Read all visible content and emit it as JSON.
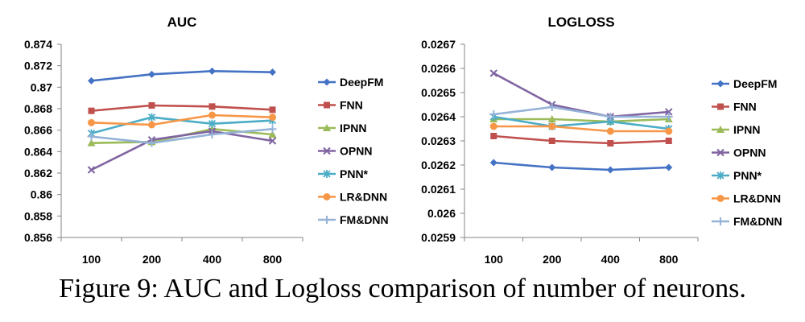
{
  "caption": "Figure 9:  AUC and Logloss comparison of number of neurons.",
  "colors": {
    "DeepFM": "#4472c4",
    "FNN": "#c0504d",
    "IPNN": "#9bbb59",
    "OPNN": "#8064a2",
    "PNN*": "#4bacc6",
    "LR&DNN": "#f79646",
    "FM&DNN": "#95b3d7"
  },
  "markers": {
    "DeepFM": "diamond",
    "FNN": "square",
    "IPNN": "triangle",
    "OPNN": "x",
    "PNN*": "star",
    "LR&DNN": "circle",
    "FM&DNN": "plus"
  },
  "chart_data": [
    {
      "type": "line",
      "title": "AUC",
      "categories": [
        "100",
        "200",
        "400",
        "800"
      ],
      "yticks": [
        "0.874",
        "0.872",
        "0.87",
        "0.868",
        "0.866",
        "0.864",
        "0.862",
        "0.86",
        "0.858",
        "0.856"
      ],
      "ylim": [
        0.856,
        0.874
      ],
      "series": [
        {
          "name": "DeepFM",
          "values": [
            0.8706,
            0.8712,
            0.8715,
            0.8714
          ]
        },
        {
          "name": "FNN",
          "values": [
            0.8678,
            0.8683,
            0.8682,
            0.8679
          ]
        },
        {
          "name": "IPNN",
          "values": [
            0.8648,
            0.8649,
            0.8661,
            0.8656
          ]
        },
        {
          "name": "OPNN",
          "values": [
            0.8623,
            0.8651,
            0.8659,
            0.865
          ]
        },
        {
          "name": "PNN*",
          "values": [
            0.8657,
            0.8672,
            0.8666,
            0.8669
          ]
        },
        {
          "name": "LR&DNN",
          "values": [
            0.8667,
            0.8665,
            0.8674,
            0.8672
          ]
        },
        {
          "name": "FM&DNN",
          "values": [
            0.8654,
            0.8648,
            0.8656,
            0.8661
          ]
        }
      ]
    },
    {
      "type": "line",
      "title": "LOGLOSS",
      "categories": [
        "100",
        "200",
        "400",
        "800"
      ],
      "yticks": [
        "0.0267",
        "0.0266",
        "0.0265",
        "0.0264",
        "0.0263",
        "0.0262",
        "0.0261",
        "0.026",
        "0.0259"
      ],
      "ylim": [
        0.0259,
        0.0267
      ],
      "series": [
        {
          "name": "DeepFM",
          "values": [
            0.02621,
            0.02619,
            0.02618,
            0.02619
          ]
        },
        {
          "name": "FNN",
          "values": [
            0.02632,
            0.0263,
            0.02629,
            0.0263
          ]
        },
        {
          "name": "IPNN",
          "values": [
            0.02639,
            0.02639,
            0.02638,
            0.02639
          ]
        },
        {
          "name": "OPNN",
          "values": [
            0.02658,
            0.02645,
            0.0264,
            0.02642
          ]
        },
        {
          "name": "PNN*",
          "values": [
            0.0264,
            0.02636,
            0.02638,
            0.02635
          ]
        },
        {
          "name": "LR&DNN",
          "values": [
            0.02636,
            0.02636,
            0.02634,
            0.02634
          ]
        },
        {
          "name": "FM&DNN",
          "values": [
            0.02641,
            0.02644,
            0.0264,
            0.0264
          ]
        }
      ]
    }
  ]
}
